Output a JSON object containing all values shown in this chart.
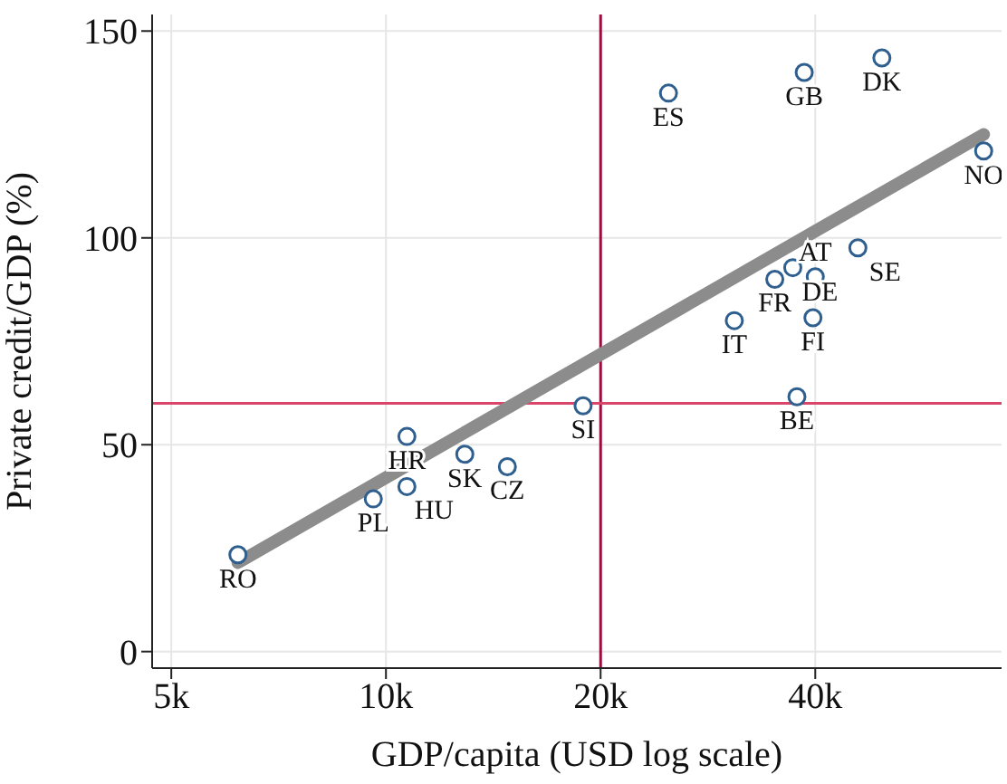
{
  "chart_data": {
    "type": "scatter",
    "xlabel": "GDP/capita (USD log scale)",
    "ylabel": "Private credit/GDP (%)",
    "log": "x",
    "xlim": [
      4700,
      73000
    ],
    "xticks": [
      {
        "value": 5000,
        "label": "5k"
      },
      {
        "value": 10000,
        "label": "10k"
      },
      {
        "value": 20000,
        "label": "20k"
      },
      {
        "value": 40000,
        "label": "40k"
      }
    ],
    "ylim": [
      -4,
      154
    ],
    "yticks": [
      0,
      50,
      100,
      150
    ],
    "grid": true,
    "marker": "circle",
    "series": [
      {
        "color": "#2f5f8f",
        "x": [
          6200,
          9600,
          10700,
          10700,
          12900,
          14800,
          18900,
          24900,
          30800,
          35100,
          37200,
          40000,
          39700,
          37700,
          45900,
          38600,
          49600,
          68900
        ],
        "values": [
          23.4,
          36.9,
          39.9,
          52,
          47.7,
          44.7,
          59.4,
          135,
          80,
          90,
          92.8,
          90.6,
          80.7,
          61.6,
          97.6,
          140,
          143.5,
          121
        ]
      },
      {
        "type": "line",
        "color": "#8c8c8c",
        "marker": "none",
        "x": [
          6200,
          68900
        ],
        "values": [
          21.5,
          125
        ]
      }
    ],
    "ref_lines": [
      {
        "axis": "x",
        "value": 20000,
        "color": "#9b0f3f"
      },
      {
        "axis": "y",
        "value": 60,
        "color": "#d9466a"
      }
    ],
    "annotations": [
      {
        "text": "RO",
        "x": 6200,
        "y": 23.4
      },
      {
        "text": "PL",
        "x": 9600,
        "y": 36.9
      },
      {
        "text": "HU",
        "x": 10700,
        "y": 39.9
      },
      {
        "text": "HR",
        "x": 10700,
        "y": 52
      },
      {
        "text": "SK",
        "x": 12900,
        "y": 47.7
      },
      {
        "text": "CZ",
        "x": 14800,
        "y": 44.7
      },
      {
        "text": "SI",
        "x": 18900,
        "y": 59.4
      },
      {
        "text": "ES",
        "x": 24900,
        "y": 135
      },
      {
        "text": "IT",
        "x": 30800,
        "y": 80
      },
      {
        "text": "FR",
        "x": 35100,
        "y": 90
      },
      {
        "text": "DE",
        "x": 37200,
        "y": 92.8
      },
      {
        "text": "AT",
        "x": 40000,
        "y": 90.6
      },
      {
        "text": "FI",
        "x": 39700,
        "y": 80.7
      },
      {
        "text": "BE",
        "x": 37700,
        "y": 61.6
      },
      {
        "text": "SE",
        "x": 45900,
        "y": 97.6
      },
      {
        "text": "GB",
        "x": 38600,
        "y": 140
      },
      {
        "text": "DK",
        "x": 49600,
        "y": 143.5
      },
      {
        "text": "NO",
        "x": 68900,
        "y": 121
      }
    ]
  }
}
